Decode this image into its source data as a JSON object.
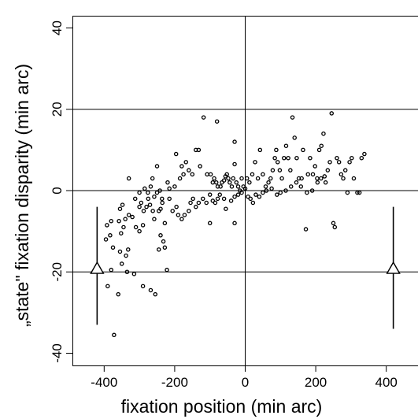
{
  "chart_data": {
    "type": "scatter",
    "title": "",
    "xlabel": "fixation position (min arc)",
    "ylabel": "„state\" fixation disparity (min arc)",
    "xlim": [
      -490,
      490
    ],
    "ylim": [
      -43,
      43
    ],
    "x_ticks": [
      -400,
      -200,
      0,
      200,
      400
    ],
    "x_tick_labels": [
      "-400",
      "-200",
      "0",
      "200",
      "400"
    ],
    "y_ticks": [
      -40,
      -20,
      0,
      20,
      40
    ],
    "y_tick_labels": [
      "-40",
      "-20",
      "0",
      "20",
      "40"
    ],
    "grid": "horizontal lines at -20, 0, 20; vertical line at x = 0",
    "marker": "open circle",
    "colors": {
      "points": "#000000",
      "lines": "#000000",
      "background": "#ffffff"
    },
    "points": [
      [
        -372,
        -35.5
      ],
      [
        -360,
        -25.5
      ],
      [
        -268,
        -24.5
      ],
      [
        -255,
        -25.5
      ],
      [
        -290,
        -23.5
      ],
      [
        -390,
        -23.5
      ],
      [
        -380,
        -19.5
      ],
      [
        -335,
        -20
      ],
      [
        -315,
        -20.5
      ],
      [
        -350,
        -18
      ],
      [
        -355,
        -15
      ],
      [
        -375,
        -14
      ],
      [
        -338,
        -16
      ],
      [
        -332,
        -14.5
      ],
      [
        -395,
        -12
      ],
      [
        -383,
        -11
      ],
      [
        -392,
        -8.5
      ],
      [
        -380,
        -7.5
      ],
      [
        -352,
        -10.5
      ],
      [
        -345,
        -9
      ],
      [
        -358,
        -7.5
      ],
      [
        -340,
        -7
      ],
      [
        -320,
        -6.5
      ],
      [
        -310,
        -9
      ],
      [
        -300,
        -10
      ],
      [
        -290,
        -8.5
      ],
      [
        -355,
        -4.5
      ],
      [
        -348,
        -3.5
      ],
      [
        -330,
        -6
      ],
      [
        -312,
        -2
      ],
      [
        -300,
        -4
      ],
      [
        -295,
        -3
      ],
      [
        -288,
        -5
      ],
      [
        -280,
        -4
      ],
      [
        -275,
        -2
      ],
      [
        -270,
        -3.5
      ],
      [
        -262,
        -5
      ],
      [
        -258,
        -7
      ],
      [
        -245,
        -5
      ],
      [
        -240,
        -4.5
      ],
      [
        -235,
        -3
      ],
      [
        -228,
        -8
      ],
      [
        -240,
        -11
      ],
      [
        -232,
        -12.5
      ],
      [
        -245,
        -14.5
      ],
      [
        -228,
        -14
      ],
      [
        -222,
        -19.5
      ],
      [
        -285,
        0.5
      ],
      [
        -276,
        -0.5
      ],
      [
        -268,
        1
      ],
      [
        -258,
        -1.5
      ],
      [
        -250,
        -0.5
      ],
      [
        -242,
        0
      ],
      [
        -236,
        -2
      ],
      [
        -215,
        -2
      ],
      [
        -206,
        -5
      ],
      [
        -195,
        -4
      ],
      [
        -190,
        -6
      ],
      [
        -180,
        -7
      ],
      [
        -172,
        -6
      ],
      [
        -160,
        -5
      ],
      [
        -155,
        -3
      ],
      [
        -148,
        -2
      ],
      [
        -140,
        -4
      ],
      [
        -132,
        -3
      ],
      [
        -120,
        -2
      ],
      [
        -110,
        -3
      ],
      [
        -100,
        -1
      ],
      [
        -92,
        -2.5
      ],
      [
        -85,
        -3
      ],
      [
        -78,
        -2
      ],
      [
        -72,
        -1
      ],
      [
        -60,
        -2
      ],
      [
        -55,
        -4.5
      ],
      [
        -40,
        -2.5
      ],
      [
        -30,
        -1.5
      ],
      [
        -20,
        -1
      ],
      [
        -10,
        -0.5
      ],
      [
        0,
        0.5
      ],
      [
        8,
        -1.5
      ],
      [
        15,
        -2
      ],
      [
        22,
        -3
      ],
      [
        30,
        -1
      ],
      [
        40,
        -1.5
      ],
      [
        50,
        -0.5
      ],
      [
        60,
        0
      ],
      [
        75,
        0.5
      ],
      [
        90,
        -1
      ],
      [
        100,
        -0.5
      ],
      [
        115,
        0
      ],
      [
        130,
        1
      ],
      [
        145,
        2
      ],
      [
        160,
        3
      ],
      [
        175,
        -0.5
      ],
      [
        190,
        0
      ],
      [
        205,
        2
      ],
      [
        215,
        3
      ],
      [
        225,
        3.5
      ],
      [
        -330,
        3
      ],
      [
        -300,
        -0.5
      ],
      [
        -250,
        6
      ],
      [
        -220,
        2
      ],
      [
        -200,
        1
      ],
      [
        -185,
        3
      ],
      [
        -180,
        6
      ],
      [
        -175,
        4
      ],
      [
        -168,
        7
      ],
      [
        -160,
        5
      ],
      [
        -150,
        4
      ],
      [
        -140,
        10
      ],
      [
        -132,
        10
      ],
      [
        -128,
        6
      ],
      [
        -118,
        18
      ],
      [
        -108,
        4
      ],
      [
        -98,
        4
      ],
      [
        -92,
        2
      ],
      [
        -88,
        3
      ],
      [
        -82,
        2
      ],
      [
        -78,
        1
      ],
      [
        -70,
        1
      ],
      [
        -66,
        2
      ],
      [
        -60,
        2.5
      ],
      [
        -56,
        3.5
      ],
      [
        -52,
        4
      ],
      [
        -48,
        3
      ],
      [
        -44,
        2
      ],
      [
        -38,
        1
      ],
      [
        -34,
        3
      ],
      [
        -30,
        6.5
      ],
      [
        -25,
        2
      ],
      [
        -20,
        1
      ],
      [
        -15,
        0
      ],
      [
        -10,
        3
      ],
      [
        -5,
        1
      ],
      [
        5,
        3
      ],
      [
        12,
        2
      ],
      [
        20,
        4
      ],
      [
        28,
        7
      ],
      [
        36,
        3
      ],
      [
        42,
        10
      ],
      [
        50,
        4
      ],
      [
        58,
        1
      ],
      [
        66,
        2
      ],
      [
        72,
        3
      ],
      [
        78,
        5
      ],
      [
        84,
        8
      ],
      [
        88,
        10
      ],
      [
        92,
        7
      ],
      [
        98,
        5
      ],
      [
        104,
        3
      ],
      [
        110,
        8
      ],
      [
        116,
        11
      ],
      [
        122,
        8
      ],
      [
        128,
        5
      ],
      [
        134,
        18
      ],
      [
        140,
        13
      ],
      [
        146,
        8
      ],
      [
        152,
        3
      ],
      [
        158,
        1
      ],
      [
        164,
        10
      ],
      [
        172,
        -9.5
      ],
      [
        178,
        4
      ],
      [
        184,
        8
      ],
      [
        192,
        4
      ],
      [
        198,
        6
      ],
      [
        204,
        3
      ],
      [
        210,
        10
      ],
      [
        216,
        11
      ],
      [
        222,
        14
      ],
      [
        228,
        2
      ],
      [
        234,
        5
      ],
      [
        240,
        7
      ],
      [
        245,
        19
      ],
      [
        250,
        -8
      ],
      [
        254,
        -9
      ],
      [
        260,
        8
      ],
      [
        266,
        7
      ],
      [
        272,
        4
      ],
      [
        278,
        3
      ],
      [
        284,
        5
      ],
      [
        290,
        -0.5
      ],
      [
        296,
        7
      ],
      [
        302,
        8
      ],
      [
        308,
        3
      ],
      [
        318,
        -0.5
      ],
      [
        324,
        -0.5
      ],
      [
        330,
        8
      ],
      [
        338,
        9
      ],
      [
        -80,
        17
      ],
      [
        -30,
        12
      ],
      [
        -100,
        -8
      ],
      [
        -30,
        -8
      ],
      [
        -196,
        9
      ],
      [
        -215,
        0.5
      ],
      [
        -263,
        3
      ]
    ],
    "annotations": [
      {
        "marker": "open triangle",
        "x": -420,
        "y": -19,
        "range": [
          -33,
          -4
        ]
      },
      {
        "marker": "open triangle",
        "x": 420,
        "y": -19,
        "range": [
          -34,
          -4
        ]
      }
    ]
  }
}
